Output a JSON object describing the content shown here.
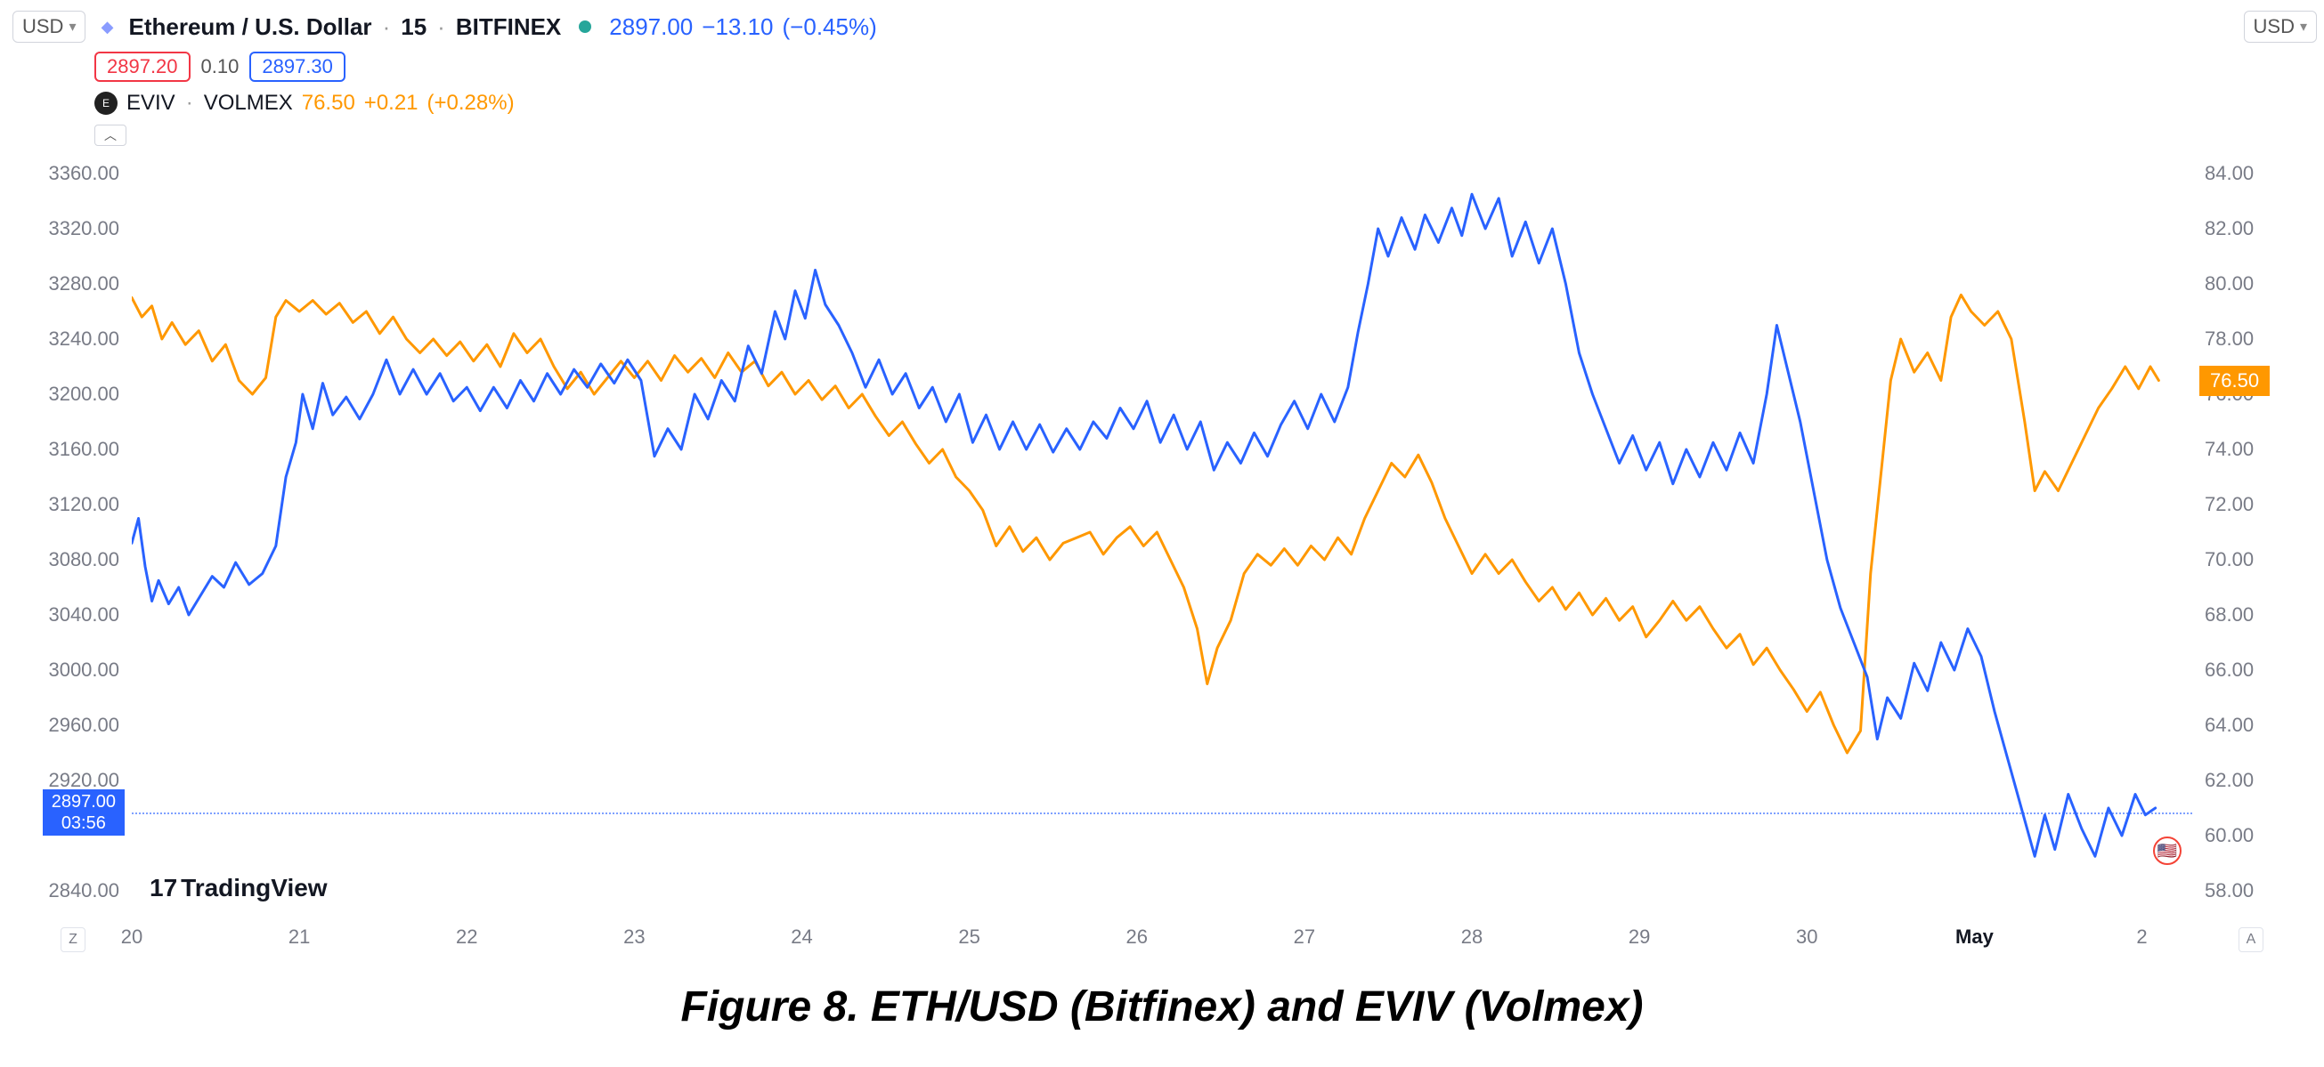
{
  "currency_left": "USD",
  "currency_right": "USD",
  "symbol1": {
    "icon_color": "#8a9cff",
    "icon_glyph": "◆",
    "name": "Ethereum / U.S. Dollar",
    "interval": "15",
    "exchange": "BITFINEX",
    "status_color": "#26a69a",
    "last": "2897.00",
    "change": "−13.10",
    "change_pct": "(−0.45%)",
    "price_color": "#2962ff"
  },
  "ohlc": {
    "bid": "2897.20",
    "bid_color": "#f23645",
    "spread": "0.10",
    "ask": "2897.30",
    "ask_color": "#2962ff"
  },
  "symbol2": {
    "icon_bg": "#131722",
    "name": "EVIV",
    "exchange": "VOLMEX",
    "last": "76.50",
    "change": "+0.21",
    "change_pct": "(+0.28%)",
    "color": "#ff9800"
  },
  "caption": "Figure 8. ETH/USD (Bitfinex) and EVIV (Volmex)",
  "watermark": "TradingView",
  "tz_left": "Z",
  "tz_right": "A",
  "chart": {
    "plot_bg": "#ffffff",
    "tick_color": "#787b86",
    "left_axis": {
      "min": 2820,
      "max": 3380,
      "ticks": [
        2840,
        2897,
        2920,
        2960,
        3000,
        3040,
        3080,
        3120,
        3160,
        3200,
        3240,
        3280,
        3320,
        3360
      ],
      "labels": [
        "2840.00",
        "2897.00",
        "2920.00",
        "2960.00",
        "3000.00",
        "3040.00",
        "3080.00",
        "3120.00",
        "3160.00",
        "3200.00",
        "3240.00",
        "3280.00",
        "3320.00",
        "3360.00"
      ]
    },
    "right_axis": {
      "min": 57,
      "max": 85,
      "ticks": [
        58,
        60,
        62,
        64,
        66,
        68,
        70,
        72,
        74,
        76,
        76.5,
        78,
        80,
        82,
        84
      ],
      "labels": [
        "58.00",
        "60.00",
        "62.00",
        "64.00",
        "66.00",
        "68.00",
        "70.00",
        "72.00",
        "74.00",
        "76.00",
        "76.50",
        "78.00",
        "80.00",
        "82.00",
        "84.00"
      ]
    },
    "x_axis": {
      "min": 0,
      "max": 12.3,
      "ticks": [
        0,
        1,
        2,
        3,
        4,
        5,
        6,
        7,
        8,
        9,
        10,
        11,
        12
      ],
      "labels": [
        "20",
        "21",
        "22",
        "23",
        "24",
        "25",
        "26",
        "27",
        "28",
        "29",
        "30",
        "May",
        "2"
      ],
      "bold_indices": [
        11
      ]
    },
    "price_line": {
      "value_left": 2897,
      "label_left_top": "2897.00",
      "label_left_bottom": "03:56",
      "value_right": 76.5,
      "label_right": "76.50"
    },
    "series1": {
      "color": "#2962ff",
      "width": 3,
      "axis": "left",
      "points": [
        [
          0.0,
          3092
        ],
        [
          0.04,
          3110
        ],
        [
          0.08,
          3075
        ],
        [
          0.12,
          3050
        ],
        [
          0.16,
          3065
        ],
        [
          0.22,
          3048
        ],
        [
          0.28,
          3060
        ],
        [
          0.34,
          3040
        ],
        [
          0.4,
          3052
        ],
        [
          0.48,
          3068
        ],
        [
          0.55,
          3060
        ],
        [
          0.62,
          3078
        ],
        [
          0.7,
          3062
        ],
        [
          0.78,
          3070
        ],
        [
          0.86,
          3090
        ],
        [
          0.92,
          3140
        ],
        [
          0.98,
          3165
        ],
        [
          1.02,
          3200
        ],
        [
          1.08,
          3175
        ],
        [
          1.14,
          3208
        ],
        [
          1.2,
          3185
        ],
        [
          1.28,
          3198
        ],
        [
          1.36,
          3182
        ],
        [
          1.44,
          3200
        ],
        [
          1.52,
          3225
        ],
        [
          1.6,
          3200
        ],
        [
          1.68,
          3218
        ],
        [
          1.76,
          3200
        ],
        [
          1.84,
          3215
        ],
        [
          1.92,
          3195
        ],
        [
          2.0,
          3205
        ],
        [
          2.08,
          3188
        ],
        [
          2.16,
          3205
        ],
        [
          2.24,
          3190
        ],
        [
          2.32,
          3210
        ],
        [
          2.4,
          3195
        ],
        [
          2.48,
          3215
        ],
        [
          2.56,
          3200
        ],
        [
          2.64,
          3218
        ],
        [
          2.72,
          3205
        ],
        [
          2.8,
          3222
        ],
        [
          2.88,
          3208
        ],
        [
          2.96,
          3225
        ],
        [
          3.04,
          3210
        ],
        [
          3.12,
          3155
        ],
        [
          3.2,
          3175
        ],
        [
          3.28,
          3160
        ],
        [
          3.36,
          3200
        ],
        [
          3.44,
          3182
        ],
        [
          3.52,
          3210
        ],
        [
          3.6,
          3195
        ],
        [
          3.68,
          3235
        ],
        [
          3.76,
          3215
        ],
        [
          3.84,
          3260
        ],
        [
          3.9,
          3240
        ],
        [
          3.96,
          3275
        ],
        [
          4.02,
          3255
        ],
        [
          4.08,
          3290
        ],
        [
          4.14,
          3265
        ],
        [
          4.22,
          3250
        ],
        [
          4.3,
          3230
        ],
        [
          4.38,
          3205
        ],
        [
          4.46,
          3225
        ],
        [
          4.54,
          3200
        ],
        [
          4.62,
          3215
        ],
        [
          4.7,
          3190
        ],
        [
          4.78,
          3205
        ],
        [
          4.86,
          3180
        ],
        [
          4.94,
          3200
        ],
        [
          5.02,
          3165
        ],
        [
          5.1,
          3185
        ],
        [
          5.18,
          3160
        ],
        [
          5.26,
          3180
        ],
        [
          5.34,
          3160
        ],
        [
          5.42,
          3178
        ],
        [
          5.5,
          3158
        ],
        [
          5.58,
          3175
        ],
        [
          5.66,
          3160
        ],
        [
          5.74,
          3180
        ],
        [
          5.82,
          3168
        ],
        [
          5.9,
          3190
        ],
        [
          5.98,
          3175
        ],
        [
          6.06,
          3195
        ],
        [
          6.14,
          3165
        ],
        [
          6.22,
          3185
        ],
        [
          6.3,
          3160
        ],
        [
          6.38,
          3180
        ],
        [
          6.46,
          3145
        ],
        [
          6.54,
          3165
        ],
        [
          6.62,
          3150
        ],
        [
          6.7,
          3172
        ],
        [
          6.78,
          3155
        ],
        [
          6.86,
          3178
        ],
        [
          6.94,
          3195
        ],
        [
          7.02,
          3175
        ],
        [
          7.1,
          3200
        ],
        [
          7.18,
          3180
        ],
        [
          7.26,
          3205
        ],
        [
          7.32,
          3245
        ],
        [
          7.38,
          3280
        ],
        [
          7.44,
          3320
        ],
        [
          7.5,
          3300
        ],
        [
          7.58,
          3328
        ],
        [
          7.66,
          3305
        ],
        [
          7.72,
          3330
        ],
        [
          7.8,
          3310
        ],
        [
          7.88,
          3335
        ],
        [
          7.94,
          3315
        ],
        [
          8.0,
          3345
        ],
        [
          8.08,
          3320
        ],
        [
          8.16,
          3342
        ],
        [
          8.24,
          3300
        ],
        [
          8.32,
          3325
        ],
        [
          8.4,
          3295
        ],
        [
          8.48,
          3320
        ],
        [
          8.56,
          3280
        ],
        [
          8.64,
          3230
        ],
        [
          8.72,
          3200
        ],
        [
          8.8,
          3175
        ],
        [
          8.88,
          3150
        ],
        [
          8.96,
          3170
        ],
        [
          9.04,
          3145
        ],
        [
          9.12,
          3165
        ],
        [
          9.2,
          3135
        ],
        [
          9.28,
          3160
        ],
        [
          9.36,
          3140
        ],
        [
          9.44,
          3165
        ],
        [
          9.52,
          3145
        ],
        [
          9.6,
          3172
        ],
        [
          9.68,
          3150
        ],
        [
          9.76,
          3200
        ],
        [
          9.82,
          3250
        ],
        [
          9.88,
          3220
        ],
        [
          9.96,
          3180
        ],
        [
          10.04,
          3130
        ],
        [
          10.12,
          3080
        ],
        [
          10.2,
          3045
        ],
        [
          10.28,
          3020
        ],
        [
          10.36,
          2995
        ],
        [
          10.42,
          2950
        ],
        [
          10.48,
          2980
        ],
        [
          10.56,
          2965
        ],
        [
          10.64,
          3005
        ],
        [
          10.72,
          2985
        ],
        [
          10.8,
          3020
        ],
        [
          10.88,
          3000
        ],
        [
          10.96,
          3030
        ],
        [
          11.04,
          3010
        ],
        [
          11.12,
          2970
        ],
        [
          11.2,
          2935
        ],
        [
          11.28,
          2900
        ],
        [
          11.36,
          2865
        ],
        [
          11.42,
          2895
        ],
        [
          11.48,
          2870
        ],
        [
          11.56,
          2910
        ],
        [
          11.64,
          2885
        ],
        [
          11.72,
          2865
        ],
        [
          11.8,
          2900
        ],
        [
          11.88,
          2880
        ],
        [
          11.96,
          2910
        ],
        [
          12.02,
          2895
        ],
        [
          12.08,
          2900
        ]
      ]
    },
    "series2": {
      "color": "#ff9800",
      "width": 3,
      "axis": "right",
      "points": [
        [
          0.0,
          79.5
        ],
        [
          0.06,
          78.8
        ],
        [
          0.12,
          79.2
        ],
        [
          0.18,
          78.0
        ],
        [
          0.24,
          78.6
        ],
        [
          0.32,
          77.8
        ],
        [
          0.4,
          78.3
        ],
        [
          0.48,
          77.2
        ],
        [
          0.56,
          77.8
        ],
        [
          0.64,
          76.5
        ],
        [
          0.72,
          76.0
        ],
        [
          0.8,
          76.6
        ],
        [
          0.86,
          78.8
        ],
        [
          0.92,
          79.4
        ],
        [
          1.0,
          79.0
        ],
        [
          1.08,
          79.4
        ],
        [
          1.16,
          78.9
        ],
        [
          1.24,
          79.3
        ],
        [
          1.32,
          78.6
        ],
        [
          1.4,
          79.0
        ],
        [
          1.48,
          78.2
        ],
        [
          1.56,
          78.8
        ],
        [
          1.64,
          78.0
        ],
        [
          1.72,
          77.5
        ],
        [
          1.8,
          78.0
        ],
        [
          1.88,
          77.4
        ],
        [
          1.96,
          77.9
        ],
        [
          2.04,
          77.2
        ],
        [
          2.12,
          77.8
        ],
        [
          2.2,
          77.0
        ],
        [
          2.28,
          78.2
        ],
        [
          2.36,
          77.5
        ],
        [
          2.44,
          78.0
        ],
        [
          2.52,
          77.0
        ],
        [
          2.6,
          76.2
        ],
        [
          2.68,
          76.8
        ],
        [
          2.76,
          76.0
        ],
        [
          2.84,
          76.6
        ],
        [
          2.92,
          77.2
        ],
        [
          3.0,
          76.6
        ],
        [
          3.08,
          77.2
        ],
        [
          3.16,
          76.5
        ],
        [
          3.24,
          77.4
        ],
        [
          3.32,
          76.8
        ],
        [
          3.4,
          77.3
        ],
        [
          3.48,
          76.6
        ],
        [
          3.56,
          77.5
        ],
        [
          3.64,
          76.8
        ],
        [
          3.72,
          77.2
        ],
        [
          3.8,
          76.3
        ],
        [
          3.88,
          76.8
        ],
        [
          3.96,
          76.0
        ],
        [
          4.04,
          76.5
        ],
        [
          4.12,
          75.8
        ],
        [
          4.2,
          76.3
        ],
        [
          4.28,
          75.5
        ],
        [
          4.36,
          76.0
        ],
        [
          4.44,
          75.2
        ],
        [
          4.52,
          74.5
        ],
        [
          4.6,
          75.0
        ],
        [
          4.68,
          74.2
        ],
        [
          4.76,
          73.5
        ],
        [
          4.84,
          74.0
        ],
        [
          4.92,
          73.0
        ],
        [
          5.0,
          72.5
        ],
        [
          5.08,
          71.8
        ],
        [
          5.16,
          70.5
        ],
        [
          5.24,
          71.2
        ],
        [
          5.32,
          70.3
        ],
        [
          5.4,
          70.8
        ],
        [
          5.48,
          70.0
        ],
        [
          5.56,
          70.6
        ],
        [
          5.64,
          70.8
        ],
        [
          5.72,
          71.0
        ],
        [
          5.8,
          70.2
        ],
        [
          5.88,
          70.8
        ],
        [
          5.96,
          71.2
        ],
        [
          6.04,
          70.5
        ],
        [
          6.12,
          71.0
        ],
        [
          6.2,
          70.0
        ],
        [
          6.28,
          69.0
        ],
        [
          6.36,
          67.5
        ],
        [
          6.42,
          65.5
        ],
        [
          6.48,
          66.8
        ],
        [
          6.56,
          67.8
        ],
        [
          6.64,
          69.5
        ],
        [
          6.72,
          70.2
        ],
        [
          6.8,
          69.8
        ],
        [
          6.88,
          70.4
        ],
        [
          6.96,
          69.8
        ],
        [
          7.04,
          70.5
        ],
        [
          7.12,
          70.0
        ],
        [
          7.2,
          70.8
        ],
        [
          7.28,
          70.2
        ],
        [
          7.36,
          71.5
        ],
        [
          7.44,
          72.5
        ],
        [
          7.52,
          73.5
        ],
        [
          7.6,
          73.0
        ],
        [
          7.68,
          73.8
        ],
        [
          7.76,
          72.8
        ],
        [
          7.84,
          71.5
        ],
        [
          7.92,
          70.5
        ],
        [
          8.0,
          69.5
        ],
        [
          8.08,
          70.2
        ],
        [
          8.16,
          69.5
        ],
        [
          8.24,
          70.0
        ],
        [
          8.32,
          69.2
        ],
        [
          8.4,
          68.5
        ],
        [
          8.48,
          69.0
        ],
        [
          8.56,
          68.2
        ],
        [
          8.64,
          68.8
        ],
        [
          8.72,
          68.0
        ],
        [
          8.8,
          68.6
        ],
        [
          8.88,
          67.8
        ],
        [
          8.96,
          68.3
        ],
        [
          9.04,
          67.2
        ],
        [
          9.12,
          67.8
        ],
        [
          9.2,
          68.5
        ],
        [
          9.28,
          67.8
        ],
        [
          9.36,
          68.3
        ],
        [
          9.44,
          67.5
        ],
        [
          9.52,
          66.8
        ],
        [
          9.6,
          67.3
        ],
        [
          9.68,
          66.2
        ],
        [
          9.76,
          66.8
        ],
        [
          9.84,
          66.0
        ],
        [
          9.92,
          65.3
        ],
        [
          10.0,
          64.5
        ],
        [
          10.08,
          65.2
        ],
        [
          10.16,
          64.0
        ],
        [
          10.24,
          63.0
        ],
        [
          10.32,
          63.8
        ],
        [
          10.38,
          69.5
        ],
        [
          10.44,
          73.0
        ],
        [
          10.5,
          76.5
        ],
        [
          10.56,
          78.0
        ],
        [
          10.64,
          76.8
        ],
        [
          10.72,
          77.5
        ],
        [
          10.8,
          76.5
        ],
        [
          10.86,
          78.8
        ],
        [
          10.92,
          79.6
        ],
        [
          10.98,
          79.0
        ],
        [
          11.06,
          78.5
        ],
        [
          11.14,
          79.0
        ],
        [
          11.22,
          78.0
        ],
        [
          11.3,
          75.0
        ],
        [
          11.36,
          72.5
        ],
        [
          11.42,
          73.2
        ],
        [
          11.5,
          72.5
        ],
        [
          11.58,
          73.5
        ],
        [
          11.66,
          74.5
        ],
        [
          11.74,
          75.5
        ],
        [
          11.82,
          76.2
        ],
        [
          11.9,
          77.0
        ],
        [
          11.98,
          76.2
        ],
        [
          12.05,
          77.0
        ],
        [
          12.1,
          76.5
        ]
      ]
    }
  }
}
